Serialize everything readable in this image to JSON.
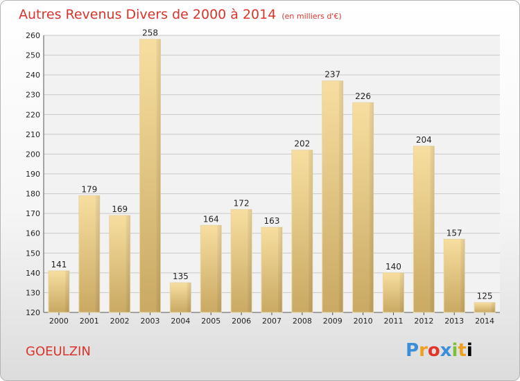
{
  "title": "Autres Revenus Divers de 2000 à 2014",
  "subtitle": "(en milliers d'€)",
  "commune": "GOEULZIN",
  "logo_text": "Proxiti",
  "chart_data": {
    "type": "bar",
    "categories": [
      "2000",
      "2001",
      "2002",
      "2003",
      "2004",
      "2005",
      "2006",
      "2007",
      "2008",
      "2009",
      "2010",
      "2011",
      "2012",
      "2013",
      "2014"
    ],
    "values": [
      141,
      179,
      169,
      258,
      135,
      164,
      172,
      163,
      202,
      237,
      226,
      140,
      204,
      157,
      125
    ],
    "ylim": [
      120,
      260
    ],
    "yticks": [
      120,
      130,
      140,
      150,
      160,
      170,
      180,
      190,
      200,
      210,
      220,
      230,
      240,
      250,
      260
    ],
    "grid": true,
    "bar_color": "#e6c886",
    "title": "Autres Revenus Divers de 2000 à 2014",
    "subtitle": "(en milliers d'€)"
  }
}
